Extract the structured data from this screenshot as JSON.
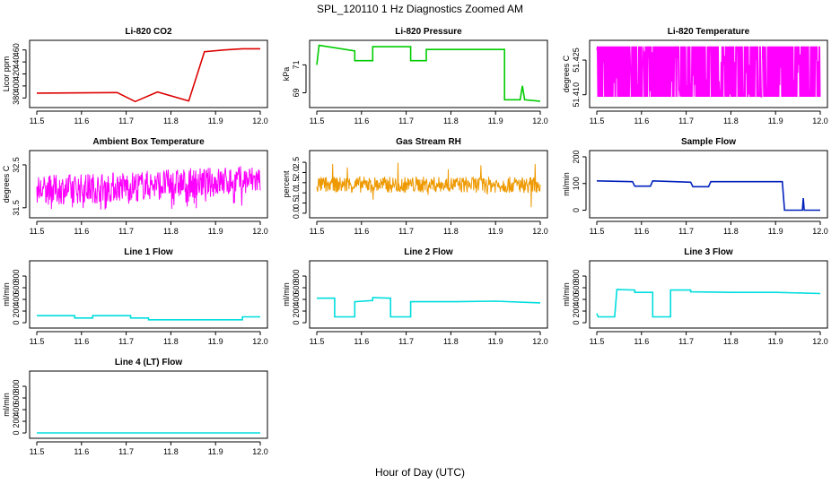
{
  "figure": {
    "title": "SPL_120110  1 Hz Diagnostics Zoomed AM",
    "xlabel": "Hour of Day (UTC)"
  },
  "chart_data": [
    {
      "type": "line",
      "title": "Li-820 CO2",
      "ylabel": "Licor ppm",
      "color": "#dd0000",
      "xlim": [
        11.5,
        12.0
      ],
      "ylim": [
        370,
        470
      ],
      "xticks": [
        11.5,
        11.6,
        11.7,
        11.8,
        11.9,
        12.0
      ],
      "yticks": [
        380,
        400,
        420,
        440,
        460
      ],
      "x": [
        11.5,
        11.68,
        11.68,
        11.72,
        11.72,
        11.77,
        11.77,
        11.84,
        11.84,
        11.875,
        11.875,
        11.92,
        11.96,
        12.0
      ],
      "y": [
        388,
        389,
        389,
        374,
        374,
        390,
        390,
        375,
        375,
        457,
        457,
        460,
        462,
        462
      ]
    },
    {
      "type": "line",
      "title": "Li-820 Pressure",
      "ylabel": "kPa",
      "color": "#00cc00",
      "xlim": [
        11.5,
        12.0
      ],
      "ylim": [
        68.2,
        72.5
      ],
      "xticks": [
        11.5,
        11.6,
        11.7,
        11.8,
        11.9,
        12.0
      ],
      "yticks": [
        69,
        71
      ],
      "x": [
        11.5,
        11.505,
        11.505,
        11.585,
        11.585,
        11.625,
        11.625,
        11.71,
        11.71,
        11.745,
        11.745,
        11.92,
        11.92,
        11.955,
        11.96,
        11.965,
        12.0
      ],
      "y": [
        71.0,
        72.4,
        72.4,
        72.0,
        71.3,
        71.3,
        72.3,
        72.3,
        71.3,
        71.3,
        72.1,
        72.1,
        68.5,
        68.5,
        69.5,
        68.5,
        68.4
      ]
    },
    {
      "type": "line",
      "title": "Li-820 Temperature",
      "ylabel": "degrees C",
      "color": "#ff00ff",
      "xlim": [
        11.5,
        12.0
      ],
      "ylim": [
        51.406,
        51.432
      ],
      "xticks": [
        11.5,
        11.6,
        11.7,
        11.8,
        11.9,
        12.0
      ],
      "yticks": [
        51.41,
        51.425
      ],
      "yticklabels": [
        "51.410",
        "51.425"
      ],
      "x": [
        11.5,
        12.0
      ],
      "y": [
        51.409,
        51.431
      ]
    },
    {
      "type": "line",
      "title": "Ambient Box Temperature",
      "ylabel": "degrees C",
      "color": "#ff00ff",
      "xlim": [
        11.5,
        12.0
      ],
      "ylim": [
        31.35,
        32.75
      ],
      "xticks": [
        11.5,
        11.6,
        11.7,
        11.8,
        11.9,
        12.0
      ],
      "yticks": [
        31.5,
        32.5
      ],
      "x": [
        11.5,
        12.0
      ],
      "y": [
        31.8,
        32.3
      ]
    },
    {
      "type": "line",
      "title": "Gas Stream RH",
      "ylabel": "percent",
      "color": "#ee9900",
      "xlim": [
        11.5,
        12.0
      ],
      "ylim": [
        -0.05,
        2.9
      ],
      "xticks": [
        11.5,
        11.6,
        11.7,
        11.8,
        11.9,
        12.0
      ],
      "yticks": [
        0.0,
        0.5,
        1.0,
        1.5,
        2.0,
        2.5
      ],
      "yticklabels": [
        "0.0",
        "0.5",
        "1.0",
        "1.5",
        "2.0",
        "2.5"
      ],
      "x": [
        11.5,
        12.0
      ],
      "y": [
        1.4,
        1.4
      ]
    },
    {
      "type": "line",
      "title": "Sample Flow",
      "ylabel": "ml/min",
      "color": "#0022bb",
      "xlim": [
        11.5,
        12.0
      ],
      "ylim": [
        -15,
        210
      ],
      "xticks": [
        11.5,
        11.6,
        11.7,
        11.8,
        11.9,
        12.0
      ],
      "yticks": [
        0,
        100,
        200
      ],
      "x": [
        11.5,
        11.58,
        11.585,
        11.62,
        11.625,
        11.71,
        11.715,
        11.75,
        11.755,
        11.915,
        11.92,
        11.96,
        11.962,
        11.964,
        11.966,
        12.0
      ],
      "y": [
        110,
        107,
        90,
        90,
        110,
        105,
        88,
        88,
        107,
        107,
        0,
        0,
        45,
        0,
        0,
        0
      ]
    },
    {
      "type": "line",
      "title": "Line 1 Flow",
      "ylabel": "ml/min",
      "color": "#00dddd",
      "xlim": [
        11.5,
        12.0
      ],
      "ylim": [
        -30,
        1000
      ],
      "xticks": [
        11.5,
        11.6,
        11.7,
        11.8,
        11.9,
        12.0
      ],
      "yticks": [
        0,
        200,
        400,
        600,
        800
      ],
      "x": [
        11.5,
        11.585,
        11.585,
        11.625,
        11.625,
        11.71,
        11.71,
        11.75,
        11.75,
        11.96,
        11.96,
        12.0
      ],
      "y": [
        120,
        120,
        80,
        80,
        120,
        120,
        80,
        80,
        50,
        50,
        100,
        100
      ]
    },
    {
      "type": "line",
      "title": "Line 2 Flow",
      "ylabel": "ml/min",
      "color": "#00dddd",
      "xlim": [
        11.5,
        12.0
      ],
      "ylim": [
        -30,
        1000
      ],
      "xticks": [
        11.5,
        11.6,
        11.7,
        11.8,
        11.9,
        12.0
      ],
      "yticks": [
        0,
        200,
        400,
        600,
        800
      ],
      "x": [
        11.5,
        11.54,
        11.54,
        11.585,
        11.585,
        11.625,
        11.625,
        11.665,
        11.665,
        11.71,
        11.71,
        11.8,
        11.9,
        12.0
      ],
      "y": [
        420,
        420,
        100,
        100,
        360,
        380,
        430,
        420,
        100,
        100,
        360,
        360,
        370,
        340
      ]
    },
    {
      "type": "line",
      "title": "Line 3 Flow",
      "ylabel": "ml/min",
      "color": "#00dddd",
      "xlim": [
        11.5,
        12.0
      ],
      "ylim": [
        -30,
        1000
      ],
      "xticks": [
        11.5,
        11.6,
        11.7,
        11.8,
        11.9,
        12.0
      ],
      "yticks": [
        0,
        200,
        400,
        600,
        800
      ],
      "x": [
        11.5,
        11.503,
        11.54,
        11.545,
        11.585,
        11.585,
        11.625,
        11.625,
        11.665,
        11.665,
        11.71,
        11.71,
        11.8,
        11.9,
        12.0
      ],
      "y": [
        160,
        100,
        100,
        570,
        560,
        520,
        520,
        100,
        100,
        560,
        560,
        530,
        520,
        520,
        500
      ]
    },
    {
      "type": "line",
      "title": "Line 4 (LT) Flow",
      "ylabel": "ml/min",
      "color": "#00dddd",
      "xlim": [
        11.5,
        12.0
      ],
      "ylim": [
        -30,
        1000
      ],
      "xticks": [
        11.5,
        11.6,
        11.7,
        11.8,
        11.9,
        12.0
      ],
      "yticks": [
        0,
        200,
        400,
        600,
        800
      ],
      "x": [
        11.5,
        11.8,
        12.0
      ],
      "y": [
        0,
        0,
        0
      ]
    }
  ]
}
